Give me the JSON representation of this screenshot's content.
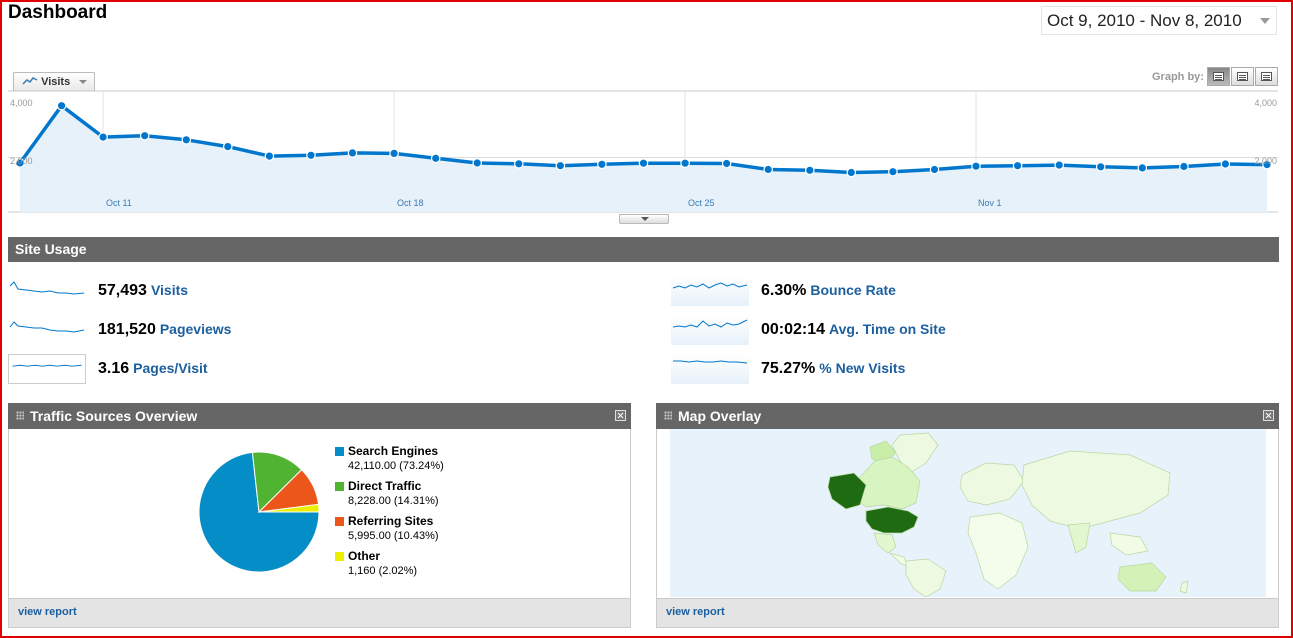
{
  "header": {
    "title": "Dashboard",
    "date_range": "Oct 9, 2010 - Nov 8, 2010"
  },
  "graph": {
    "metric_tab": "Visits",
    "graph_by_label": "Graph by:",
    "y_tick_top_left": "4,000",
    "y_tick_mid_left": "2,000",
    "y_tick_top_right": "4,000",
    "y_tick_mid_right": "2,000",
    "date_labels": [
      "Oct 11",
      "Oct 18",
      "Oct 25",
      "Nov 1"
    ]
  },
  "chart_data": {
    "type": "area",
    "ylim": [
      0,
      4000
    ],
    "x": [
      "Oct 9",
      "Oct 10",
      "Oct 11",
      "Oct 12",
      "Oct 13",
      "Oct 14",
      "Oct 15",
      "Oct 16",
      "Oct 17",
      "Oct 18",
      "Oct 19",
      "Oct 20",
      "Oct 21",
      "Oct 22",
      "Oct 23",
      "Oct 24",
      "Oct 25",
      "Oct 26",
      "Oct 27",
      "Oct 28",
      "Oct 29",
      "Oct 30",
      "Oct 31",
      "Nov 1",
      "Nov 2",
      "Nov 3",
      "Nov 4",
      "Nov 5",
      "Nov 6",
      "Nov 7",
      "Nov 8"
    ],
    "series": [
      {
        "values": [
          1800,
          3900,
          2750,
          2800,
          2650,
          2400,
          2050,
          2080,
          2170,
          2150,
          1970,
          1800,
          1770,
          1700,
          1750,
          1790,
          1790,
          1780,
          1560,
          1530,
          1450,
          1480,
          1560,
          1680,
          1700,
          1720,
          1660,
          1620,
          1670,
          1760,
          1740
        ]
      }
    ],
    "grid": true
  },
  "site_usage": {
    "title": "Site Usage",
    "metrics": [
      {
        "value": "57,493",
        "label": "Visits"
      },
      {
        "value": "181,520",
        "label": "Pageviews"
      },
      {
        "value": "3.16",
        "label": "Pages/Visit"
      },
      {
        "value": "6.30%",
        "label": "Bounce Rate"
      },
      {
        "value": "00:02:14",
        "label": "Avg. Time on Site"
      },
      {
        "value": "75.27%",
        "label": "% New Visits"
      }
    ]
  },
  "traffic_sources": {
    "title": "Traffic Sources Overview",
    "view_report": "view report",
    "slices": [
      {
        "name": "Search Engines",
        "value": "42,110.00 (73.24%)",
        "pct": 73.24,
        "color": "#058dc7"
      },
      {
        "name": "Direct Traffic",
        "value": "8,228.00 (14.31%)",
        "pct": 14.31,
        "color": "#50b432"
      },
      {
        "name": "Referring Sites",
        "value": "5,995.00 (10.43%)",
        "pct": 10.43,
        "color": "#ed561b"
      },
      {
        "name": "Other",
        "value": "1,160 (2.02%)",
        "pct": 2.02,
        "color": "#edef00"
      }
    ]
  },
  "map_overlay": {
    "title": "Map Overlay",
    "view_report": "view report"
  },
  "colors": {
    "accent": "#1c5f9f",
    "line": "#0077cc",
    "area_fill": "#e6f1fa",
    "header_bg": "#666666",
    "frame": "#e00000"
  }
}
